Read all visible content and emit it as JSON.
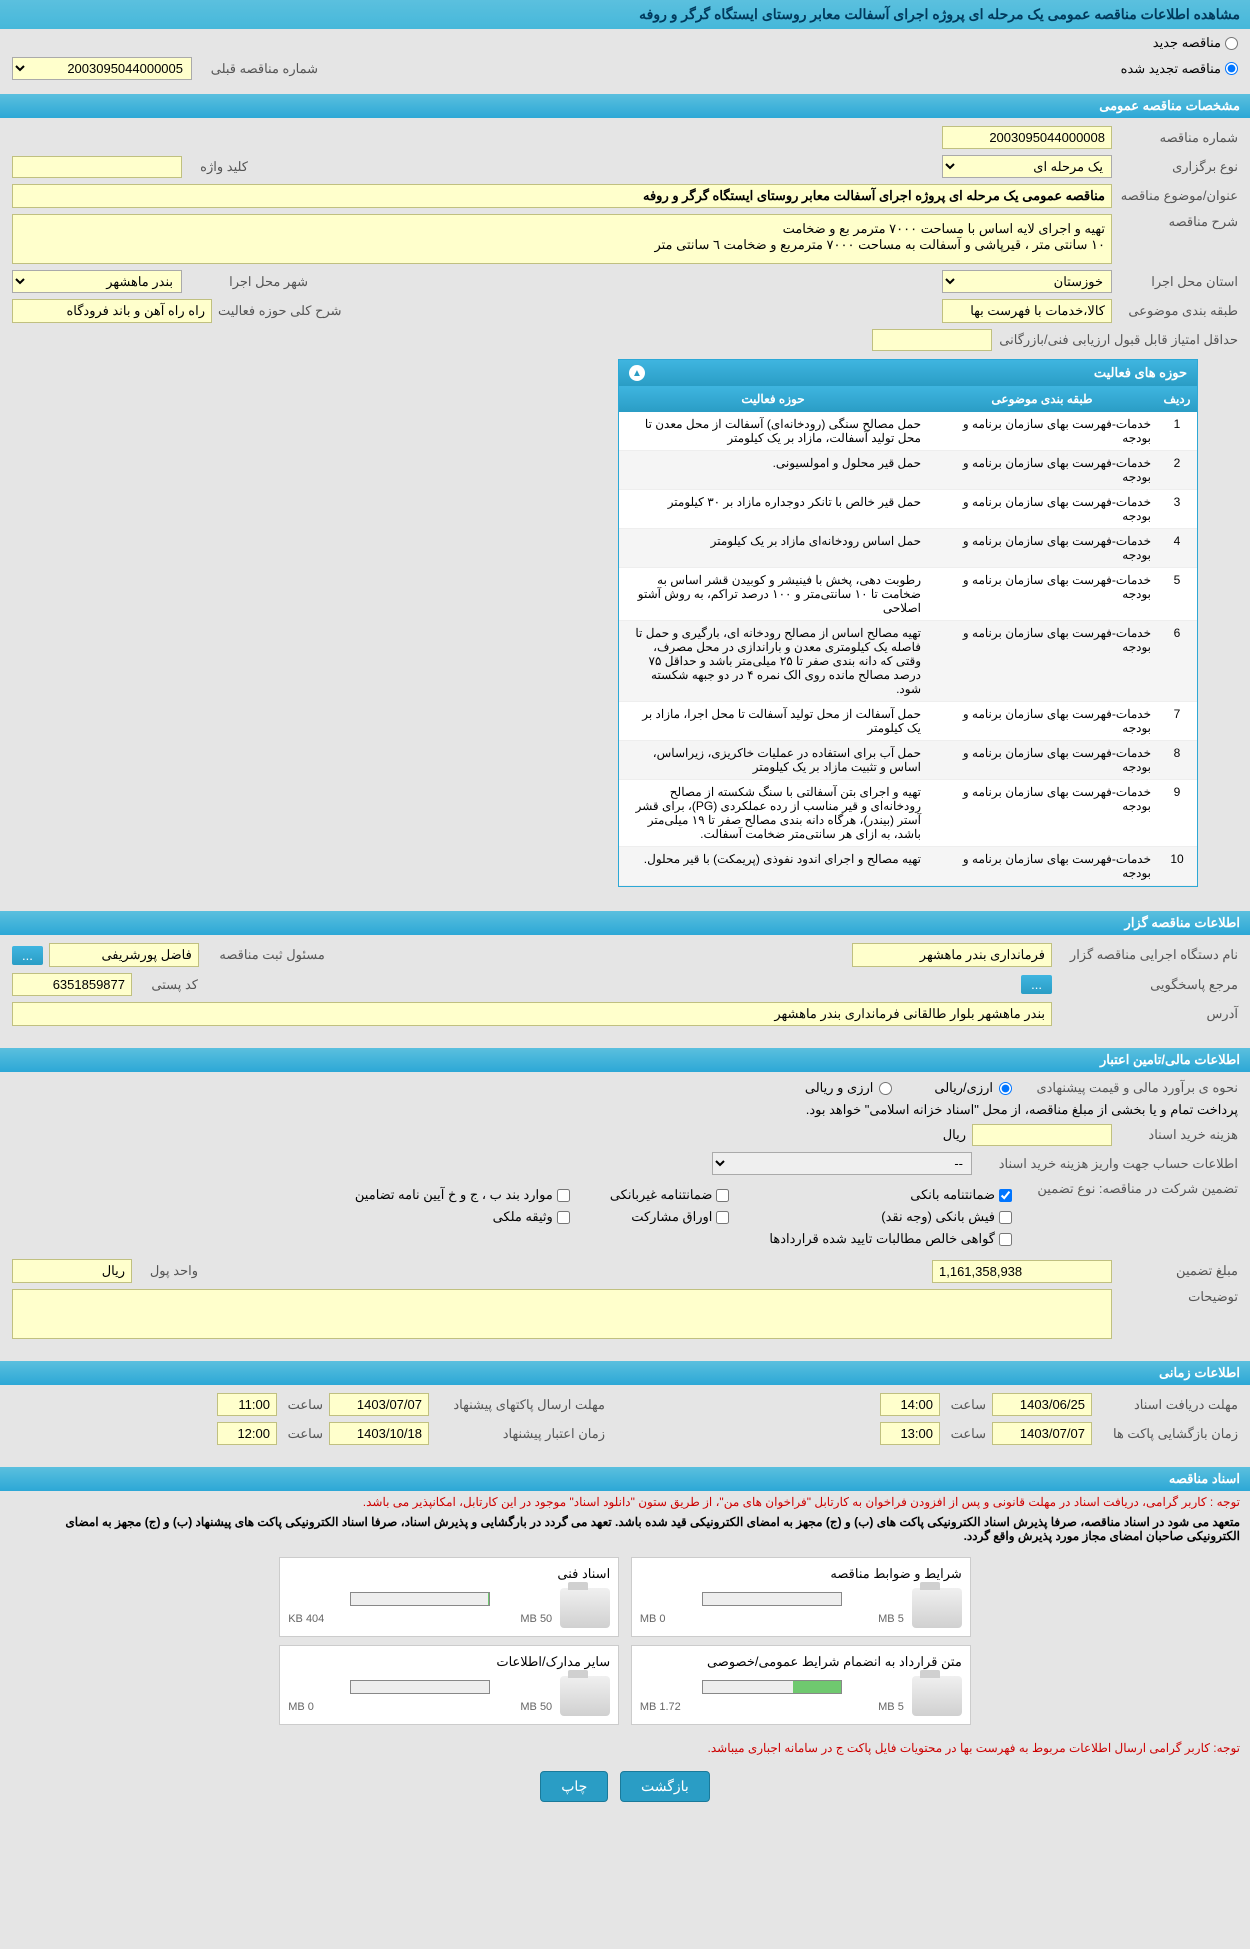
{
  "page_title": "مشاهده اطلاعات مناقصه عمومی یک مرحله ای پروژه اجرای آسفالت معابر روستای ایستگاه گرگر و روفه",
  "tender_type": {
    "new_label": "مناقصه جدید",
    "renewed_label": "مناقصه تجدید شده",
    "selected": "renewed"
  },
  "prev_tender": {
    "label": "شماره مناقصه قبلی",
    "value": "2003095044000005"
  },
  "sections": {
    "general": "مشخصات مناقصه عمومی",
    "organizer": "اطلاعات مناقصه گزار",
    "financial": "اطلاعات مالی/تامین اعتبار",
    "timing": "اطلاعات زمانی",
    "documents": "اسناد مناقصه"
  },
  "general": {
    "tender_no_label": "شماره مناقصه",
    "tender_no": "2003095044000008",
    "holding_type_label": "نوع برگزاری",
    "holding_type": "یک مرحله ای",
    "keyword_label": "کلید واژه",
    "keyword": "",
    "title_label": "عنوان/موضوع مناقصه",
    "title": "مناقصه عمومی یک مرحله ای پروژه اجرای آسفالت معابر روستای ایستگاه گرگر و روفه",
    "desc_label": "شرح مناقصه",
    "desc": "تهیه و اجرای لایه اساس با مساحت ۷۰۰۰ مترمر بع و ضخامت\n۱۰ سانتی متر ، قیرپاشی و آسفالت به مساحت ۷۰۰۰ مترمربع و ضخامت ٦ سانتی متر",
    "province_label": "استان محل اجرا",
    "province": "خوزستان",
    "city_label": "شهر محل اجرا",
    "city": "بندر ماهشهر",
    "subject_label": "طبقه بندی موضوعی",
    "subject": "کالا،خدمات با فهرست بها",
    "activity_scope_label": "شرح کلی حوزه فعالیت",
    "activity_scope": "راه راه آهن و باند فرودگاه",
    "min_score_label": "حداقل امتیاز قابل قبول ارزیابی فنی/بازرگانی",
    "min_score": ""
  },
  "activities": {
    "panel_title": "حوزه های فعالیت",
    "col_index": "ردیف",
    "col_category": "طبقه بندی موضوعی",
    "col_area": "حوزه فعالیت",
    "rows": [
      {
        "i": "1",
        "cat": "خدمات-فهرست بهای سازمان برنامه و بودجه",
        "area": "حمل مصالح سنگی (رودخانه‌ای) آسفالت از محل معدن تا محل تولید آسفالت، مازاد بر یک کیلومتر"
      },
      {
        "i": "2",
        "cat": "خدمات-فهرست بهای سازمان برنامه و بودجه",
        "area": "حمل قیر محلول و امولسیونی."
      },
      {
        "i": "3",
        "cat": "خدمات-فهرست بهای سازمان برنامه و بودجه",
        "area": "حمل قیر خالص با تانکر دوجداره مازاد بر ۳۰ کیلومتر"
      },
      {
        "i": "4",
        "cat": "خدمات-فهرست بهای سازمان برنامه و بودجه",
        "area": "حمل اساس رودخانه‌ای مازاد بر یک کیلومتر"
      },
      {
        "i": "5",
        "cat": "خدمات-فهرست بهای سازمان برنامه و بودجه",
        "area": "رطوبت دهی، پخش با فینیشر و کوبیدن قشر اساس به ضخامت تا ۱۰ سانتی‌متر و ۱۰۰ درصد تراکم، به روش آشتو اصلاحی"
      },
      {
        "i": "6",
        "cat": "خدمات-فهرست بهای سازمان برنامه و بودجه",
        "area": "تهیه مصالح اساس از مصالح رودخانه ای، بارگیری و حمل تا فاصله یک کیلومتری معدن و باراندازی در محل مصرف، وقتی که دانه بندی صفر تا ۲۵ میلی‌متر باشد و حداقل ۷۵ درصد مصالح مانده روی الک نمره ۴ در دو جبهه  شکسته شود."
      },
      {
        "i": "7",
        "cat": "خدمات-فهرست بهای سازمان برنامه و بودجه",
        "area": "حمل آسفالت از محل تولید آسفالت تا محل اجرا، مازاد بر یک کیلومتر"
      },
      {
        "i": "8",
        "cat": "خدمات-فهرست بهای سازمان برنامه و بودجه",
        "area": "حمل آب برای استفاده در عملیات خاکریزی، زیراساس،  اساس و تثبیت مازاد بر یک کیلومتر"
      },
      {
        "i": "9",
        "cat": "خدمات-فهرست بهای سازمان برنامه و بودجه",
        "area": "تهیه و اجرای بتن آسفالتی با سنگ شکسته از مصالح رودخانه‌ای و قیر مناسب از رده عملکردی (PG)، برای قشر آستر (بیندر)، هرگاه دانه بندی مصالح صفر تا ۱۹ میلی‌متر باشد، به ازای هر سانتی‌متر ضخامت آسفالت."
      },
      {
        "i": "10",
        "cat": "خدمات-فهرست بهای سازمان برنامه و بودجه",
        "area": "تهیه مصالح و اجرای اندود نفوذی (پریمکت) با قیر محلول."
      }
    ]
  },
  "organizer": {
    "org_label": "نام دستگاه اجرایی مناقصه گزار",
    "org": "فرمانداری بندر ماهشهر",
    "responsible_label": "مسئول ثبت مناقصه",
    "responsible": "فاضل پورشریفی",
    "responder_label": "مرجع پاسخگویی",
    "postal_label": "کد پستی",
    "postal": "6351859877",
    "address_label": "آدرس",
    "address": "بندر ماهشهر بلوار طالقانی فرمانداری بندر ماهشهر"
  },
  "financial": {
    "estimate_label": "نحوه ی برآورد مالی و قیمت پیشنهادی",
    "opt_rial": "ارزی/ریالی",
    "opt_fx": "ارزی و ریالی",
    "payment_note": "پرداخت تمام و یا بخشی از مبلغ مناقصه، از محل \"اسناد خزانه اسلامی\" خواهد بود.",
    "doc_cost_label": "هزینه خرید اسناد",
    "doc_cost_unit": "ریال",
    "account_label": "اطلاعات حساب جهت واریز هزینه خرید اسناد",
    "account_value": "--",
    "guarantee_label": "تضمین شرکت در مناقصه:   نوع تضمین",
    "g1": "ضمانتنامه بانکی",
    "g2": "ضمانتنامه غیربانکی",
    "g3": "موارد بند ب ، ج و خ آیین نامه تضامین",
    "g4": "فیش بانکی (وجه نقد)",
    "g5": "اوراق مشارکت",
    "g6": "وثیقه ملکی",
    "g7": "گواهی خالص مطالبات تایید شده قراردادها",
    "amount_label": "مبلغ تضمین",
    "amount": "1,161,358,938",
    "unit_label": "واحد پول",
    "unit": "ریال",
    "notes_label": "توضیحات"
  },
  "timing": {
    "receive_label": "مهلت دریافت اسناد",
    "receive_date": "1403/06/25",
    "receive_time": "14:00",
    "send_label": "مهلت ارسال پاکتهای پیشنهاد",
    "send_date": "1403/07/07",
    "send_time": "11:00",
    "open_label": "زمان بازگشایی پاکت ها",
    "open_date": "1403/07/07",
    "open_time": "13:00",
    "valid_label": "زمان اعتبار پیشنهاد",
    "valid_date": "1403/10/18",
    "valid_time": "12:00",
    "time_label": "ساعت"
  },
  "docs": {
    "notice1": "توجه : کاربر گرامی، دریافت اسناد در مهلت قانونی و پس از افزودن فراخوان به کارتابل \"فراخوان های من\"، از طریق ستون \"دانلود اسناد\" موجود در این کارتابل، امکانپذیر می باشد.",
    "notice2": "متعهد می شود در اسناد مناقصه، صرفا پذیرش اسناد الکترونیکی پاکت های (ب) و (ج) مجهز به امضای الکترونیکی قید شده باشد. تعهد می گردد در بارگشایی و پذیرش اسناد، صرفا اسناد الکترونیکی پاکت های پیشنهاد (ب) و (ج) مجهز به امضای الکترونیکی صاحبان امضای مجاز مورد پذیرش واقع گردد.",
    "f1_title": "شرایط و ضوابط مناقصه",
    "f2_title": "اسناد فنی",
    "f3_title": "متن قرارداد به انضمام شرایط عمومی/خصوصی",
    "f4_title": "سایر مدارک/اطلاعات",
    "f1_used": "0 MB",
    "f1_total": "5 MB",
    "f1_pct": 0,
    "f2_used": "404 KB",
    "f2_total": "50 MB",
    "f2_pct": 1,
    "f3_used": "1.72 MB",
    "f3_total": "5 MB",
    "f3_pct": 35,
    "f4_used": "0 MB",
    "f4_total": "50 MB",
    "f4_pct": 0,
    "notice3": "توجه: کاربر گرامی ارسال اطلاعات مربوط به فهرست بها در محتویات فایل پاکت ج در سامانه اجباری میباشد."
  },
  "buttons": {
    "back": "بازگشت",
    "more": "...",
    "print": "چاپ"
  }
}
